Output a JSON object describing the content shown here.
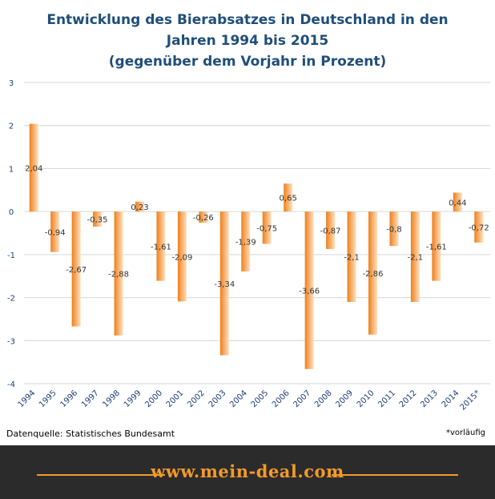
{
  "chart_data": {
    "type": "bar",
    "title_lines": [
      "Entwicklung des Bierabsatzes in Deutschland in den",
      "Jahren 1994 bis 2015",
      "(gegenüber dem Vorjahr in Prozent)"
    ],
    "categories": [
      "1994",
      "1995",
      "1996",
      "1997",
      "1998",
      "1999",
      "2000",
      "2001",
      "2002",
      "2003",
      "2004",
      "2005",
      "2006",
      "2007",
      "2008",
      "2009",
      "2010",
      "2011",
      "2012",
      "2013",
      "2014",
      "2015*"
    ],
    "values": [
      2.04,
      -0.94,
      -2.67,
      -0.35,
      -2.88,
      0.23,
      -1.61,
      -2.09,
      -0.26,
      -3.34,
      -1.39,
      -0.75,
      0.65,
      -3.66,
      -0.87,
      -2.1,
      -2.86,
      -0.8,
      -2.1,
      -1.61,
      0.44,
      -0.72
    ],
    "value_labels": [
      "2,04",
      "-0,94",
      "-2,67",
      "-0,35",
      "-2,88",
      "0,23",
      "-1,61",
      "-2,09",
      "-0,26",
      "-3,34",
      "-1,39",
      "-0,75",
      "0,65",
      "-3,66",
      "-0,87",
      "-2,1",
      "-2,86",
      "-0,8",
      "-2,1",
      "-1,61",
      "0,44",
      "-0,72"
    ],
    "yticks": [
      3,
      2,
      1,
      0,
      -1,
      -2,
      -3,
      -4
    ],
    "ylim": [
      -4,
      3
    ],
    "grid": true,
    "bar_color_dark": "#f07f1a",
    "bar_color_light": "#fde1c2"
  },
  "source_text": "Datenquelle: Statistisches Bundesamt",
  "footnote_text": "*vorläufig",
  "footer": {
    "brand_text": "www.mein-deal.com",
    "background": "#2b2b2b",
    "accent": "#f39a2a"
  }
}
